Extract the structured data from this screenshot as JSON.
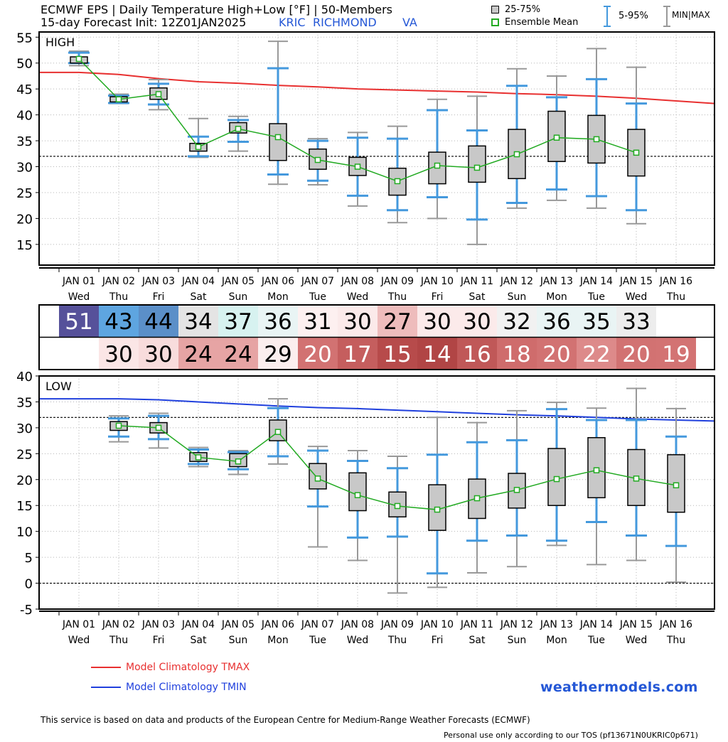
{
  "header": {
    "title": "ECMWF EPS | Daily Temperature High+Low [°F] | 50-Members",
    "subtitle": "15-day Forecast Init: 12Z01JAN2025",
    "station_id": "KRIC",
    "station_city": "RICHMOND",
    "station_state": "VA"
  },
  "legend": {
    "box_label": "25-75%",
    "mean_label": "Ensemble Mean",
    "whisker_label": "5-95%",
    "minmax_label": "MIN|MAX"
  },
  "colors": {
    "box_fill": "#c8c8c8",
    "mean": "#22aa22",
    "whisker_5_95": "#4499dd",
    "whisker_minmax": "#999999",
    "clim_tmax": "#e83030",
    "clim_tmin": "#2040dd",
    "brand": "#2457d6"
  },
  "footer": {
    "clim_tmax_label": "Model Climatology TMAX",
    "clim_tmin_label": "Model Climatology TMIN",
    "brand": "weathermodels.com",
    "disclaimer": "This service is based on data and products of the European Centre for Medium-Range Weather Forecasts (ECMWF)",
    "tos": "Personal use only according to our TOS (pf13671N0UKRIC0p671)"
  },
  "chart_data": [
    {
      "type": "box",
      "panel_label": "HIGH",
      "ylim": [
        11,
        56
      ],
      "yticks": [
        15,
        20,
        25,
        30,
        35,
        40,
        45,
        50,
        55
      ],
      "grid": true,
      "reference_line": 32,
      "categories": [
        "JAN 01",
        "JAN 02",
        "JAN 03",
        "JAN 04",
        "JAN 05",
        "JAN 06",
        "JAN 07",
        "JAN 08",
        "JAN 09",
        "JAN 10",
        "JAN 11",
        "JAN 12",
        "JAN 13",
        "JAN 14",
        "JAN 15",
        "JAN 16"
      ],
      "weekdays": [
        "Wed",
        "Thu",
        "Fri",
        "Sat",
        "Sun",
        "Mon",
        "Tue",
        "Wed",
        "Thu",
        "Fri",
        "Sat",
        "Sun",
        "Mon",
        "Tue",
        "Wed",
        "Thu"
      ],
      "series": [
        {
          "name": "min",
          "values": [
            49.5,
            42.2,
            41.0,
            31.8,
            33.0,
            26.6,
            26.5,
            22.4,
            19.2,
            20.0,
            15.0,
            22.0,
            23.5,
            22.0,
            19.0,
            null
          ]
        },
        {
          "name": "p5",
          "values": [
            50.0,
            42.3,
            42.0,
            32.0,
            34.8,
            28.5,
            27.3,
            24.4,
            21.6,
            24.1,
            19.8,
            23.0,
            25.6,
            24.3,
            21.6,
            null
          ]
        },
        {
          "name": "p25",
          "values": [
            50.0,
            42.5,
            43.0,
            33.0,
            36.5,
            31.2,
            29.5,
            28.3,
            24.5,
            26.7,
            27.0,
            27.7,
            31.0,
            30.7,
            28.2,
            null
          ]
        },
        {
          "name": "mean",
          "values": [
            50.8,
            43.0,
            44.0,
            33.8,
            37.3,
            35.7,
            31.3,
            30.0,
            27.2,
            30.2,
            29.8,
            32.4,
            35.6,
            35.3,
            32.7,
            null
          ]
        },
        {
          "name": "p75",
          "values": [
            51.2,
            43.5,
            45.2,
            34.5,
            38.5,
            38.3,
            33.4,
            31.8,
            29.7,
            32.8,
            34.0,
            37.2,
            40.7,
            39.9,
            37.2,
            null
          ]
        },
        {
          "name": "p95",
          "values": [
            52.0,
            43.7,
            46.0,
            35.8,
            39.0,
            49.0,
            35.0,
            35.6,
            35.4,
            40.9,
            37.0,
            45.6,
            43.4,
            46.9,
            42.2,
            null
          ]
        },
        {
          "name": "max",
          "values": [
            52.3,
            44.0,
            46.8,
            39.3,
            39.7,
            54.2,
            35.4,
            36.6,
            37.8,
            43.0,
            43.6,
            48.9,
            47.5,
            52.8,
            49.2,
            null
          ]
        }
      ],
      "clim_tmax": [
        48.2,
        47.8,
        47.0,
        46.4,
        46.1,
        45.7,
        45.4,
        45.0,
        44.8,
        44.6,
        44.4,
        44.1,
        43.9,
        43.6,
        43.2,
        42.7
      ]
    },
    {
      "type": "table",
      "rows": [
        {
          "name": "high",
          "values": [
            51,
            43,
            44,
            34,
            37,
            36,
            31,
            30,
            27,
            30,
            30,
            32,
            36,
            35,
            33,
            null
          ],
          "colors": [
            "#56519a",
            "#5ea5e0",
            "#5b8fc8",
            "#e4e4e4",
            "#d7f2f0",
            "#e9f4f4",
            "#fdf0f0",
            "#fbeaea",
            "#eebcbc",
            "#fbeaea",
            "#fbeaea",
            "#f1f1f1",
            "#e9f4f4",
            "#e9f4f4",
            "#ededed",
            null
          ]
        },
        {
          "name": "low",
          "values": [
            null,
            30,
            30,
            24,
            24,
            29,
            20,
            17,
            15,
            14,
            16,
            18,
            20,
            22,
            20,
            19
          ],
          "colors": [
            null,
            "#fbe6e6",
            "#f8dcdc",
            "#e6a4a4",
            "#e6a4a4",
            "#fbeeee",
            "#d27272",
            "#c55e5e",
            "#b74b4b",
            "#b14545",
            "#c05858",
            "#cf6c6c",
            "#d27272",
            "#dd8a8a",
            "#d27272",
            "#d37373"
          ]
        }
      ]
    },
    {
      "type": "box",
      "panel_label": "LOW",
      "ylim": [
        -5,
        40
      ],
      "yticks": [
        -5,
        0,
        5,
        10,
        15,
        20,
        25,
        30,
        35,
        40
      ],
      "grid": true,
      "reference_lines": [
        32,
        0
      ],
      "categories": [
        "JAN 01",
        "JAN 02",
        "JAN 03",
        "JAN 04",
        "JAN 05",
        "JAN 06",
        "JAN 07",
        "JAN 08",
        "JAN 09",
        "JAN 10",
        "JAN 11",
        "JAN 12",
        "JAN 13",
        "JAN 14",
        "JAN 15",
        "JAN 16"
      ],
      "weekdays": [
        "Wed",
        "Thu",
        "Fri",
        "Sat",
        "Sun",
        "Mon",
        "Tue",
        "Wed",
        "Thu",
        "Fri",
        "Sat",
        "Sun",
        "Mon",
        "Tue",
        "Wed",
        "Thu"
      ],
      "series": [
        {
          "name": "min",
          "values": [
            null,
            27.3,
            26.1,
            22.5,
            21.0,
            23.0,
            7.0,
            4.4,
            -1.9,
            -0.8,
            2.0,
            3.2,
            7.3,
            3.6,
            4.4,
            0.2
          ]
        },
        {
          "name": "p5",
          "values": [
            null,
            28.3,
            27.8,
            23.0,
            22.0,
            24.5,
            14.8,
            8.8,
            9.0,
            1.9,
            8.2,
            9.2,
            8.2,
            11.8,
            9.2,
            7.2
          ]
        },
        {
          "name": "p25",
          "values": [
            null,
            29.5,
            29.0,
            23.5,
            22.5,
            27.5,
            18.2,
            14.0,
            12.8,
            10.2,
            12.5,
            14.5,
            15.0,
            16.5,
            15.0,
            13.7
          ]
        },
        {
          "name": "mean",
          "values": [
            null,
            30.4,
            30.0,
            24.3,
            23.5,
            29.2,
            20.2,
            17.0,
            14.9,
            14.2,
            16.4,
            18.0,
            20.1,
            21.8,
            20.2,
            18.9
          ]
        },
        {
          "name": "p75",
          "values": [
            null,
            31.2,
            31.0,
            25.2,
            25.0,
            31.5,
            23.1,
            21.3,
            17.6,
            19.0,
            20.1,
            21.2,
            26.0,
            28.1,
            25.8,
            24.8
          ]
        },
        {
          "name": "p95",
          "values": [
            null,
            31.8,
            32.3,
            25.8,
            25.3,
            33.8,
            25.6,
            23.6,
            22.2,
            24.8,
            27.2,
            27.6,
            33.6,
            31.5,
            31.5,
            28.3
          ]
        },
        {
          "name": "max",
          "values": [
            null,
            32.3,
            32.8,
            26.2,
            25.6,
            35.6,
            26.4,
            25.6,
            24.5,
            32.0,
            31.0,
            33.3,
            34.9,
            33.8,
            37.6,
            33.7
          ]
        }
      ],
      "clim_tmin": [
        35.6,
        35.6,
        35.4,
        35.0,
        34.6,
        34.2,
        33.9,
        33.7,
        33.4,
        33.1,
        32.8,
        32.5,
        32.3,
        32.0,
        31.7,
        31.5
      ]
    }
  ]
}
